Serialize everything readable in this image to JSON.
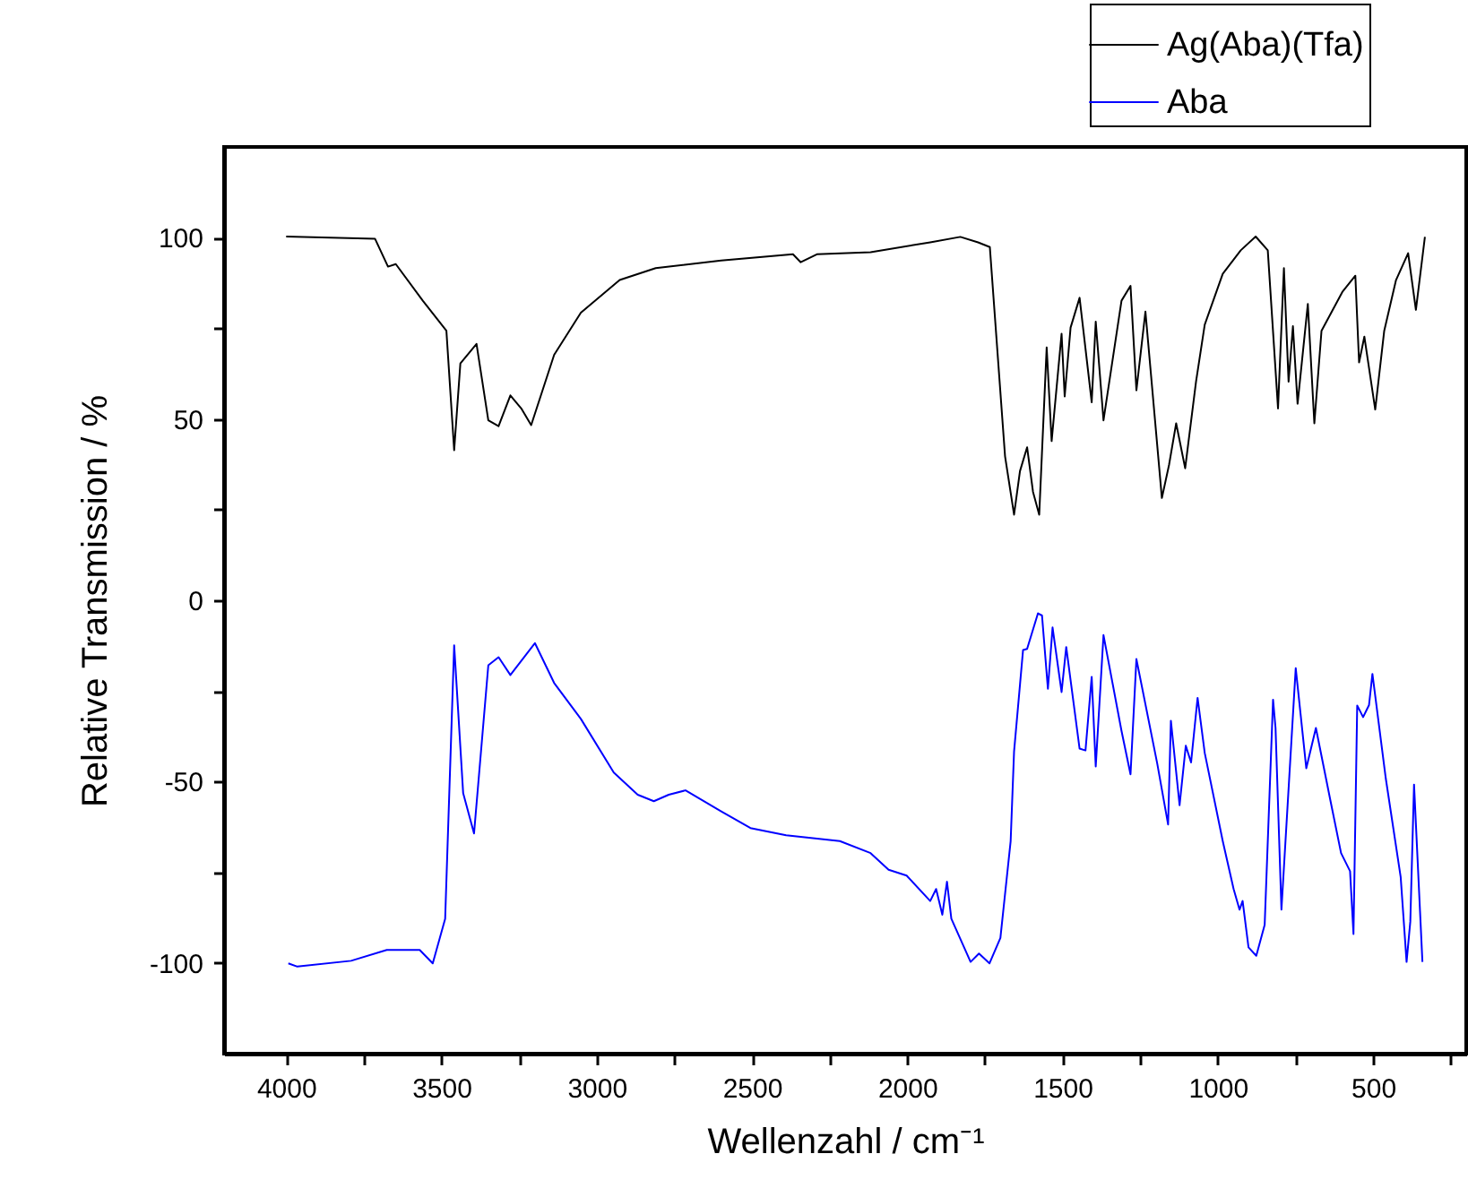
{
  "chart_data": {
    "type": "line",
    "xlabel": "Wellenzahl / cm⁻¹",
    "ylabel": "Relative Transmission / %",
    "xlim": [
      4200,
      200
    ],
    "ylim": [
      -125,
      125
    ],
    "xticks": [
      4000,
      {
        "value": 3750,
        "label": null
      },
      3500,
      {
        "value": 3250,
        "label": null
      },
      3000,
      {
        "value": 2750,
        "label": null
      },
      2500,
      {
        "value": 2250,
        "label": null
      },
      2000,
      {
        "value": 1750,
        "label": null
      },
      1500,
      {
        "value": 1250,
        "label": null
      },
      1000,
      {
        "value": 750,
        "label": null
      },
      500,
      {
        "value": 250,
        "label": null
      }
    ],
    "yticks": [
      -100,
      {
        "value": -75,
        "label": null
      },
      -50,
      {
        "value": -25,
        "label": null
      },
      0,
      {
        "value": 25,
        "label": null
      },
      50,
      {
        "value": 75,
        "label": null
      },
      100
    ],
    "legend": "top right",
    "grid": false,
    "line_style": "solid",
    "marker": "none",
    "series": [
      {
        "name": "Ag(Aba)(Tfa)",
        "color": "#000000",
        "x": [
          4000,
          3714,
          3672,
          3647,
          3560,
          3484,
          3459,
          3439,
          3387,
          3349,
          3316,
          3278,
          3243,
          3211,
          3137,
          3051,
          2926,
          2810,
          2599,
          2368,
          2343,
          2291,
          2118,
          1926,
          1829,
          1772,
          1734,
          1685,
          1656,
          1637,
          1614,
          1595,
          1575,
          1551,
          1535,
          1503,
          1493,
          1474,
          1445,
          1406,
          1393,
          1368,
          1310,
          1281,
          1262,
          1233,
          1180,
          1157,
          1134,
          1105,
          1070,
          1042,
          984,
          926,
          878,
          839,
          806,
          787,
          772,
          758,
          743,
          710,
          689,
          666,
          599,
          557,
          545,
          528,
          493,
          464,
          426,
          387,
          362,
          333
        ],
        "values": [
          100.3,
          99.7,
          92,
          92.7,
          82.6,
          74.3,
          41.4,
          65.3,
          70.7,
          49.6,
          48,
          56.5,
          52.9,
          48.3,
          67.7,
          79.3,
          88.3,
          91.6,
          93.7,
          95.4,
          93.2,
          95.4,
          96,
          98.7,
          100.2,
          98.7,
          97.4,
          39.7,
          23.6,
          35.6,
          42.2,
          29.9,
          23.6,
          69.7,
          43.9,
          73.5,
          56.2,
          75.2,
          83.4,
          54.6,
          76.8,
          49.6,
          82.6,
          86.7,
          57.9,
          79.6,
          28.2,
          37.3,
          48.8,
          36.4,
          60.3,
          76,
          90,
          96.5,
          100.3,
          96.5,
          52.9,
          91.6,
          60.3,
          75.6,
          54.2,
          81.7,
          48.8,
          74.3,
          85,
          89.5,
          65.6,
          72.7,
          52.6,
          74.3,
          88.3,
          95.7,
          80.1,
          100.2
        ]
      },
      {
        "name": "Aba",
        "color": "#0000ff",
        "x": [
          3993,
          3964,
          3791,
          3676,
          3570,
          3528,
          3488,
          3459,
          3430,
          3395,
          3349,
          3316,
          3278,
          3199,
          3137,
          3051,
          2945,
          2868,
          2816,
          2768,
          2714,
          2599,
          2505,
          2390,
          2217,
          2118,
          2060,
          2002,
          1926,
          1907,
          1887,
          1872,
          1858,
          1796,
          1769,
          1735,
          1700,
          1667,
          1656,
          1627,
          1614,
          1579,
          1566,
          1547,
          1532,
          1503,
          1488,
          1445,
          1426,
          1406,
          1393,
          1368,
          1310,
          1281,
          1262,
          1195,
          1160,
          1151,
          1123,
          1103,
          1086,
          1065,
          1042,
          984,
          949,
          930,
          920,
          901,
          876,
          849,
          822,
          814,
          795,
          749,
          715,
          684,
          638,
          603,
          574,
          563,
          551,
          532,
          513,
          502,
          459,
          411,
          392,
          380,
          368,
          341
        ],
        "values": [
          -100.1,
          -101,
          -99.4,
          -96.4,
          -96.4,
          -100.1,
          -87.8,
          -12.4,
          -53.2,
          -64.3,
          -17.9,
          -15.7,
          -20.6,
          -11.8,
          -22.8,
          -32.7,
          -47.5,
          -53.6,
          -55.4,
          -53.6,
          -52.4,
          -58.2,
          -62.8,
          -64.8,
          -66.4,
          -69.7,
          -74.3,
          -75.9,
          -82.9,
          -79.6,
          -86.7,
          -77.6,
          -87.8,
          -99.7,
          -97.4,
          -100.1,
          -93.1,
          -66.4,
          -41.7,
          -13.7,
          -13.4,
          -3.6,
          -4.2,
          -24.4,
          -7.5,
          -25.3,
          -12.9,
          -40.9,
          -41.4,
          -21.1,
          -45.8,
          -9.6,
          -36,
          -48,
          -16.2,
          -45,
          -61.8,
          -33.2,
          -56.5,
          -40.1,
          -44.7,
          -26.9,
          -42.1,
          -66.4,
          -79.6,
          -85.3,
          -82.9,
          -95.7,
          -98,
          -89.5,
          -27.4,
          -35.2,
          -85.3,
          -18.7,
          -46.3,
          -35.2,
          -54.9,
          -69.7,
          -74.7,
          -92,
          -29,
          -32.2,
          -28.9,
          -20.3,
          -49.1,
          -76.3,
          -99.7,
          -88.6,
          -50.8,
          -99.7
        ]
      }
    ]
  }
}
